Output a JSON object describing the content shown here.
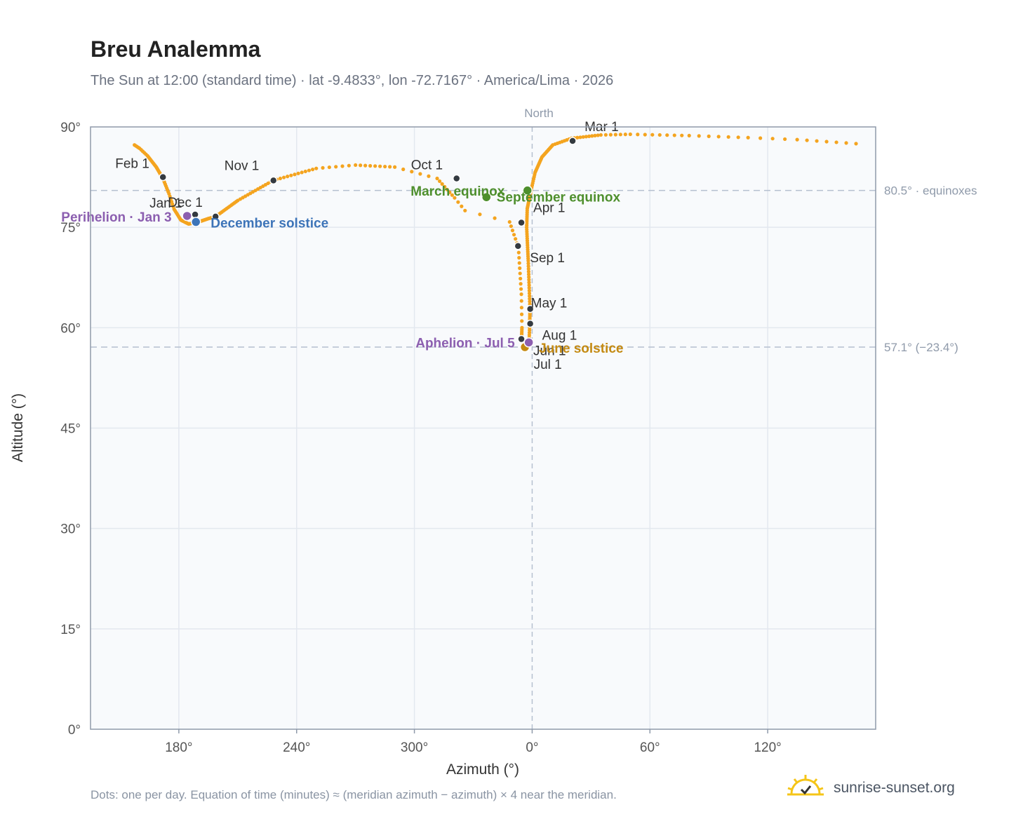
{
  "title": "Breu Analemma",
  "subtitle": "The Sun at 12:00 (standard time) · lat -9.4833°, lon -72.7167° · America/Lima · 2026",
  "footnote": "Dots: one per day. Equation of time (minutes) ≈ (meridian azimuth − azimuth) × 4 near the meridian.",
  "brand": {
    "name": "sunrise-sunset.org",
    "icon": "sun-check-icon"
  },
  "colors": {
    "path": "#f4a41f",
    "month_dot": "#343a40",
    "equinox": "#4e8f2d",
    "december_solstice": "#3d74b8",
    "june_solstice": "#c48a12",
    "perihelion_aphelion": "#8c5fb0",
    "plot_bg": "#f8fafc",
    "frame": "#8f9aaa",
    "grid": "#e3e8ef",
    "ref_line": "#b5c0cf"
  },
  "chart_data": {
    "type": "scatter",
    "xlabel": "Azimuth (°)",
    "ylabel": "Altitude (°)",
    "ylim": [
      0,
      90
    ],
    "xlim_unwrapped_deg": [
      135,
      535
    ],
    "x_ticks": [
      "180°",
      "240°",
      "300°",
      "0°",
      "60°",
      "120°"
    ],
    "y_ticks": [
      "0°",
      "15°",
      "30°",
      "45°",
      "60°",
      "75°",
      "90°"
    ],
    "north_label": "North",
    "grid": true,
    "reference_lines": [
      {
        "altitude": 80.5,
        "label": "80.5° · equinoxes"
      },
      {
        "altitude": 57.1,
        "label": "57.1° (−23.4°)"
      }
    ],
    "path_anchors_note": "azimuth, altitude, day-of-year",
    "path_anchors": [
      [
        157.4,
        87.3,
        1
      ],
      [
        160.0,
        86.8,
        5
      ],
      [
        164.0,
        85.7,
        10
      ],
      [
        168.5,
        84.0,
        20
      ],
      [
        171.9,
        82.3,
        32
      ],
      [
        175.0,
        80.0,
        40
      ],
      [
        177.6,
        77.7,
        46
      ],
      [
        181.0,
        76.1,
        54
      ],
      [
        185.0,
        75.5,
        66
      ],
      [
        190.0,
        75.8,
        76
      ],
      [
        195.0,
        76.3,
        87
      ],
      [
        198.7,
        76.6,
        94
      ],
      [
        210.0,
        79.0,
        108
      ],
      [
        228.0,
        82.0,
        122
      ],
      [
        250.0,
        83.8,
        134
      ],
      [
        270.0,
        84.3,
        140
      ],
      [
        290.0,
        84.0,
        148
      ],
      [
        311.6,
        82.3,
        153
      ],
      [
        320.5,
        79.4,
        160
      ],
      [
        325.8,
        77.5,
        163
      ],
      [
        348.5,
        75.8,
        166
      ],
      [
        353.0,
        72.0,
        172
      ],
      [
        354.5,
        65.0,
        181
      ],
      [
        354.8,
        60.0,
        186
      ],
      [
        354.6,
        58.4,
        192
      ],
      [
        356.0,
        57.2,
        204
      ],
      [
        357.0,
        57.5,
        209
      ],
      [
        358.4,
        57.8,
        215
      ],
      [
        358.7,
        60.0,
        221
      ],
      [
        358.9,
        62.7,
        232
      ],
      [
        358.0,
        70.0,
        250
      ],
      [
        357.2,
        75.0,
        265
      ],
      [
        357.5,
        77.8,
        274
      ],
      [
        359.5,
        80.6,
        287
      ],
      [
        361.5,
        83.2,
        295
      ],
      [
        365.0,
        85.5,
        306
      ],
      [
        370.5,
        87.3,
        317
      ],
      [
        380.0,
        88.3,
        325
      ],
      [
        395.0,
        88.8,
        335
      ],
      [
        410.0,
        88.9,
        341
      ],
      [
        440.0,
        88.7,
        349
      ],
      [
        470.0,
        88.4,
        355
      ],
      [
        495.0,
        88.1,
        359
      ],
      [
        505.0,
        87.9,
        361
      ],
      [
        515.0,
        87.7,
        363
      ],
      [
        525.0,
        87.5,
        365
      ]
    ],
    "month_markers": [
      {
        "label": "Jan 1",
        "az": 188.3,
        "alt": 76.9
      },
      {
        "label": "Feb 1",
        "az": 171.9,
        "alt": 82.5
      },
      {
        "label": "Mar 1",
        "az": 380.6,
        "alt": 87.9
      },
      {
        "label": "Apr 1",
        "az": 354.5,
        "alt": 75.7
      },
      {
        "label": "May 1",
        "az": 359.0,
        "alt": 62.8
      },
      {
        "label": "Jun 1",
        "az": 354.5,
        "alt": 58.3
      },
      {
        "label": "Jul 1",
        "az": 357.2,
        "alt": 57.0
      },
      {
        "label": "Aug 1",
        "az": 359.0,
        "alt": 60.6
      },
      {
        "label": "Sep 1",
        "az": 352.8,
        "alt": 72.2
      },
      {
        "label": "Oct 1",
        "az": 321.5,
        "alt": 82.3
      },
      {
        "label": "Nov 1",
        "az": 228.2,
        "alt": 82.0
      },
      {
        "label": "Dec 1",
        "az": 198.7,
        "alt": 76.6
      }
    ],
    "events": [
      {
        "label": "March equinox",
        "az": 336.7,
        "alt": 79.5,
        "kind": "equinox"
      },
      {
        "label": "September equinox",
        "az": 357.6,
        "alt": 80.5,
        "kind": "equinox"
      },
      {
        "label": "December solstice",
        "az": 188.7,
        "alt": 75.8,
        "kind": "december_solstice"
      },
      {
        "label": "June solstice",
        "az": 356.3,
        "alt": 57.1,
        "kind": "june_solstice"
      },
      {
        "label": "Perihelion · Jan 3",
        "az": 184.2,
        "alt": 76.7,
        "kind": "perihelion_aphelion"
      },
      {
        "label": "Aphelion · Jul 5",
        "az": 358.3,
        "alt": 57.8,
        "kind": "perihelion_aphelion"
      }
    ]
  }
}
